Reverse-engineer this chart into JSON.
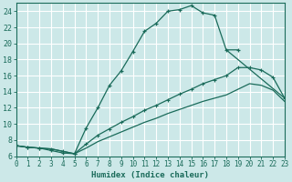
{
  "xlabel": "Humidex (Indice chaleur)",
  "bg_color": "#cce8e8",
  "grid_color": "#b0d8d8",
  "line_color": "#1a6b5a",
  "xlim": [
    0,
    23
  ],
  "ylim": [
    6,
    25
  ],
  "xticks": [
    0,
    1,
    2,
    3,
    4,
    5,
    6,
    7,
    8,
    9,
    10,
    11,
    12,
    13,
    14,
    15,
    16,
    17,
    18,
    19,
    20,
    21,
    22,
    23
  ],
  "yticks": [
    6,
    8,
    10,
    12,
    14,
    16,
    18,
    20,
    22,
    24
  ],
  "line1_x": [
    0,
    1,
    2,
    3,
    4,
    5,
    6,
    7,
    8,
    9,
    10,
    11,
    12,
    13,
    14,
    15,
    16,
    17,
    18,
    19
  ],
  "line1_y": [
    7.3,
    7.1,
    7.0,
    6.7,
    6.4,
    6.3,
    9.5,
    12.0,
    14.8,
    16.6,
    19.0,
    21.5,
    22.5,
    24.0,
    24.2,
    24.7,
    23.8,
    23.5,
    19.2,
    19.2
  ],
  "line2_x": [
    0,
    1,
    2,
    3,
    4,
    5,
    6,
    7,
    8,
    9,
    10,
    11,
    12,
    13,
    14,
    15,
    16,
    17,
    18,
    19,
    20,
    21,
    22,
    23
  ],
  "line2_y": [
    7.3,
    7.1,
    7.0,
    6.9,
    6.6,
    6.3,
    7.5,
    8.6,
    9.4,
    10.2,
    10.9,
    11.7,
    12.3,
    13.0,
    13.7,
    14.3,
    15.0,
    15.5,
    16.0,
    17.0,
    17.0,
    16.7,
    15.8,
    13.2
  ],
  "line3_x": [
    0,
    1,
    2,
    3,
    4,
    5,
    6,
    7,
    8,
    9,
    10,
    11,
    12,
    13,
    14,
    15,
    16,
    17,
    18,
    19,
    20,
    21,
    22,
    23
  ],
  "line3_y": [
    7.3,
    7.1,
    7.0,
    6.9,
    6.6,
    6.3,
    7.0,
    7.8,
    8.4,
    9.0,
    9.6,
    10.2,
    10.7,
    11.3,
    11.8,
    12.3,
    12.8,
    13.2,
    13.6,
    14.3,
    15.0,
    14.8,
    14.2,
    12.8
  ]
}
